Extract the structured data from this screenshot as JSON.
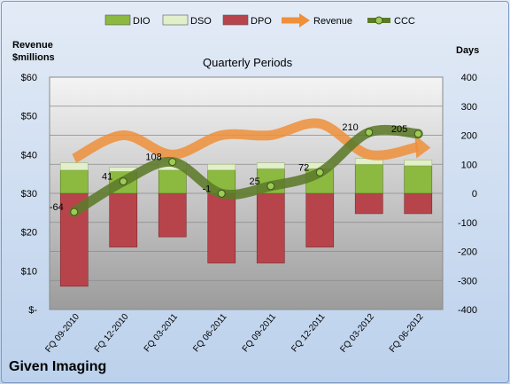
{
  "chart_data": {
    "type": "combo",
    "title": "Quarterly Periods",
    "company": "Given Imaging",
    "y_left_label_line1": "Revenue",
    "y_left_label_line2": "$millions",
    "y_right_label": "Days",
    "categories": [
      "FQ 09-2010",
      "FQ 12-2010",
      "FQ 03-2011",
      "FQ 06-2011",
      "FQ 09-2011",
      "FQ 12-2011",
      "FQ 03-2012",
      "FQ 06-2012"
    ],
    "y_left_ticks": [
      "$-",
      "$10",
      "$20",
      "$30",
      "$40",
      "$50",
      "$60"
    ],
    "y_left_lim": [
      0,
      60
    ],
    "y_right_ticks": [
      "-400",
      "-300",
      "-200",
      "-100",
      "0",
      "100",
      "200",
      "300",
      "400"
    ],
    "y_right_lim": [
      -400,
      400
    ],
    "series": [
      {
        "name": "DIO",
        "type": "bar",
        "axis": "days",
        "color": "#8cb940",
        "values": [
          80,
          75,
          80,
          80,
          85,
          85,
          100,
          95
        ]
      },
      {
        "name": "DSO",
        "type": "bar",
        "axis": "days",
        "color": "#e2efcb",
        "values": [
          25,
          15,
          30,
          20,
          20,
          20,
          20,
          20
        ]
      },
      {
        "name": "DPO",
        "type": "bar",
        "axis": "days",
        "color": "#b8444b",
        "values": [
          -320,
          -185,
          -150,
          -240,
          -240,
          -185,
          -70,
          -70
        ]
      },
      {
        "name": "Revenue",
        "type": "line",
        "axis": "revenue",
        "color": "#ef8f3a",
        "values": [
          39,
          45,
          40,
          45,
          45,
          48,
          40,
          42
        ]
      },
      {
        "name": "CCC",
        "type": "line",
        "axis": "days",
        "color": "#5c7a2a",
        "values": [
          -64,
          41,
          108,
          -1,
          25,
          72,
          210,
          205
        ]
      }
    ],
    "ccc_labels": [
      "-64",
      "41",
      "108",
      "-1",
      "25",
      "72",
      "210",
      "205"
    ],
    "legend_position": "top",
    "grid": true
  }
}
